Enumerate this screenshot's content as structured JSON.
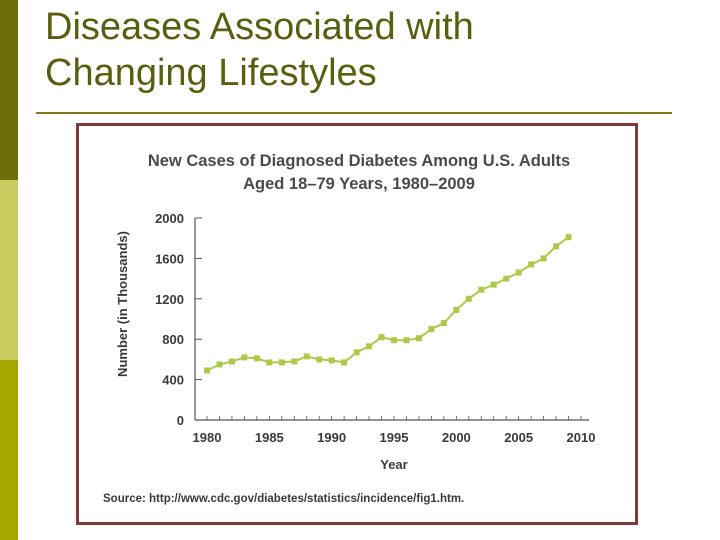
{
  "slide": {
    "title_line1": "Diseases Associated with",
    "title_line2": "Changing Lifestyles"
  },
  "colors": {
    "title": "#5a5e10",
    "line": "#aec94a",
    "frame": "#7a3c3c"
  },
  "chart_data": {
    "type": "line",
    "title_line1": "New Cases of Diagnosed Diabetes Among U.S. Adults",
    "title_line2": "Aged 18–79 Years, 1980–2009",
    "xlabel": "Year",
    "ylabel": "Number (in Thousands)",
    "xlim": [
      1980,
      2010
    ],
    "ylim": [
      0,
      2000
    ],
    "xticks": [
      1980,
      1985,
      1990,
      1995,
      2000,
      2005,
      2010
    ],
    "yticks": [
      0,
      400,
      800,
      1200,
      1600,
      2000
    ],
    "source": "Source: http://www.cdc.gov/diabetes/statistics/incidence/fig1.htm.",
    "series": [
      {
        "name": "New cases",
        "x": [
          1980,
          1981,
          1982,
          1983,
          1984,
          1985,
          1986,
          1987,
          1988,
          1989,
          1990,
          1991,
          1992,
          1993,
          1994,
          1995,
          1996,
          1997,
          1998,
          1999,
          2000,
          2001,
          2002,
          2003,
          2004,
          2005,
          2006,
          2007,
          2008,
          2009
        ],
        "values": [
          490,
          550,
          580,
          620,
          610,
          570,
          570,
          580,
          630,
          600,
          590,
          570,
          670,
          730,
          820,
          790,
          790,
          810,
          900,
          960,
          1090,
          1200,
          1290,
          1340,
          1400,
          1460,
          1540,
          1600,
          1720,
          1810
        ]
      }
    ]
  }
}
